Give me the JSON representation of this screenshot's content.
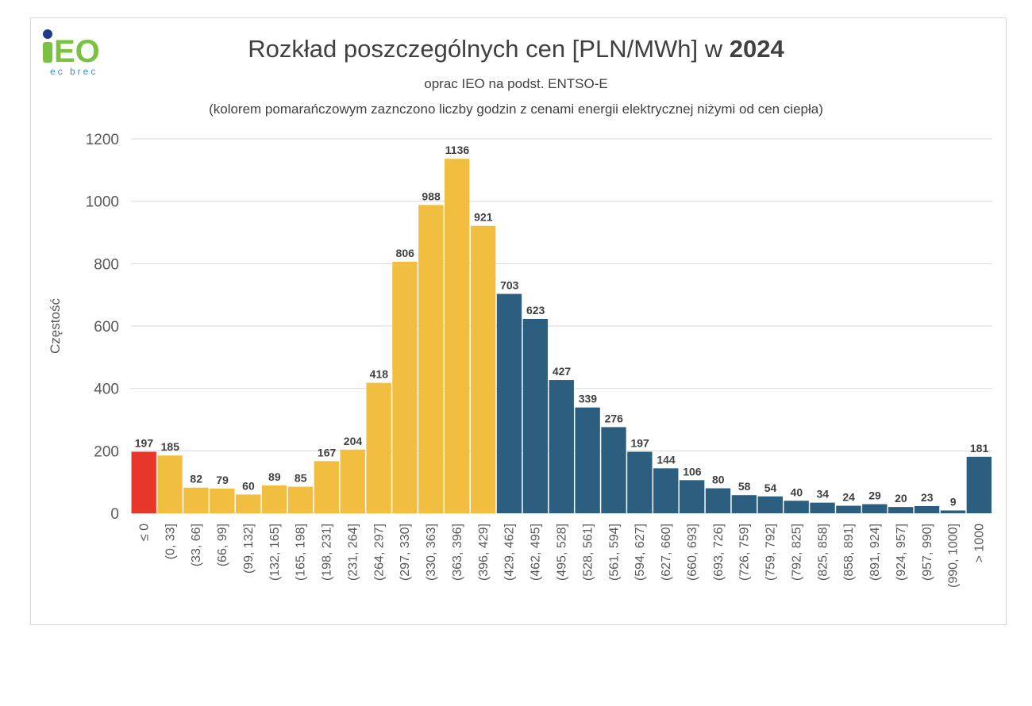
{
  "logo": {
    "text": "IEO",
    "tagline": "ec brec"
  },
  "title": {
    "prefix": "Rozkład poszczególnych cen [PLN/MWh] w ",
    "year": "2024"
  },
  "subtitle": "oprac IEO na podst. ENTSO-E",
  "note": "(kolorem pomarańczowym zaznczono liczby godzin z cenami energii elektrycznej niżymi od cen ciepła)",
  "colors": {
    "negative": "#E8372A",
    "below_heat": "#F2BE3F",
    "above_heat": "#2C5F7F",
    "grid": "#d9d9d9"
  },
  "chart_data": {
    "type": "bar",
    "title": "Rozkład poszczególnych cen [PLN/MWh] w 2024",
    "xlabel": "",
    "ylabel": "Częstość",
    "ylim": [
      0,
      1200
    ],
    "yticks": [
      0,
      200,
      400,
      600,
      800,
      1000,
      1200
    ],
    "grid": true,
    "categories": [
      "≤ 0",
      "(0, 33]",
      "(33, 66]",
      "(66, 99]",
      "(99, 132]",
      "(132, 165]",
      "(165, 198]",
      "(198, 231]",
      "(231, 264]",
      "(264, 297]",
      "(297, 330]",
      "(330, 363]",
      "(363, 396]",
      "(396, 429]",
      "(429, 462]",
      "(462, 495]",
      "(495, 528]",
      "(528, 561]",
      "(561, 594]",
      "(594, 627]",
      "(627, 660]",
      "(660, 693]",
      "(693, 726]",
      "(726, 759]",
      "(759, 792]",
      "(792, 825]",
      "(825, 858]",
      "(858, 891]",
      "(891, 924]",
      "(924, 957]",
      "(957, 990]",
      "(990, 1000]",
      "> 1000"
    ],
    "values": [
      197,
      185,
      82,
      79,
      60,
      89,
      85,
      167,
      204,
      418,
      806,
      988,
      1136,
      921,
      703,
      623,
      427,
      339,
      276,
      197,
      144,
      106,
      80,
      58,
      54,
      40,
      34,
      24,
      29,
      20,
      23,
      9,
      181
    ],
    "bar_colors": [
      "negative",
      "below_heat",
      "below_heat",
      "below_heat",
      "below_heat",
      "below_heat",
      "below_heat",
      "below_heat",
      "below_heat",
      "below_heat",
      "below_heat",
      "below_heat",
      "below_heat",
      "below_heat",
      "above_heat",
      "above_heat",
      "above_heat",
      "above_heat",
      "above_heat",
      "above_heat",
      "above_heat",
      "above_heat",
      "above_heat",
      "above_heat",
      "above_heat",
      "above_heat",
      "above_heat",
      "above_heat",
      "above_heat",
      "above_heat",
      "above_heat",
      "above_heat",
      "above_heat"
    ]
  }
}
